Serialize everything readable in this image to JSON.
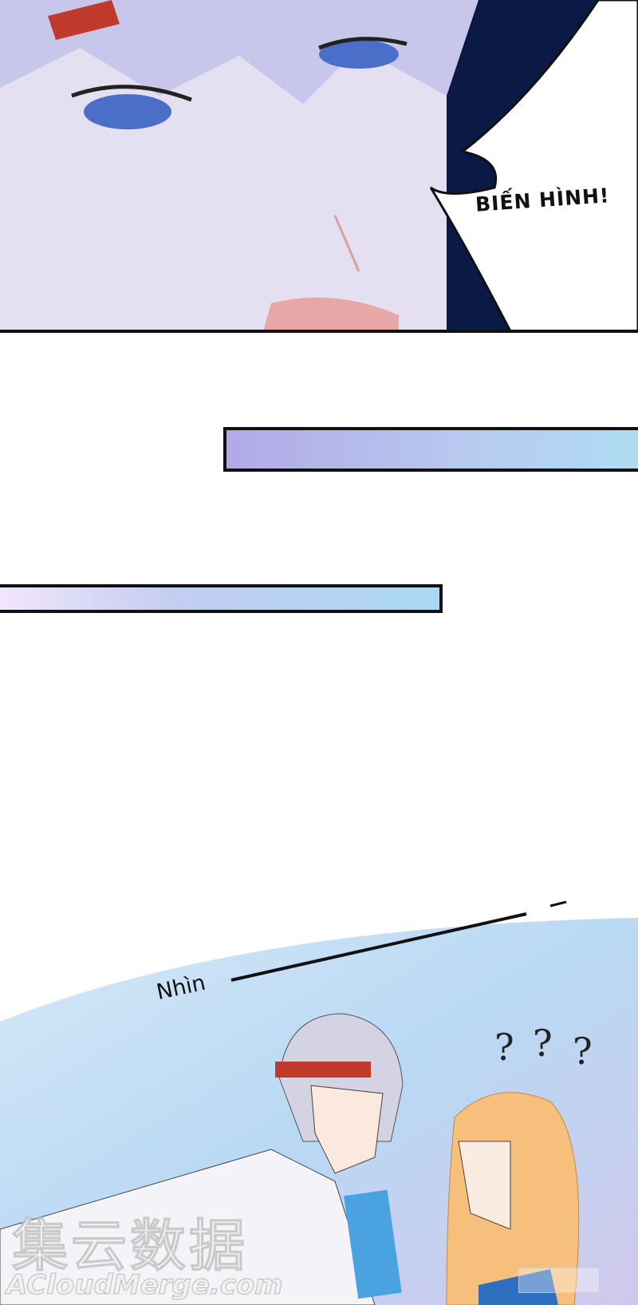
{
  "panel_top": {
    "speech": "BIẾN HÌNH!"
  },
  "panel_bottom": {
    "narration": "Nhìn",
    "question_marks": [
      "?",
      "?",
      "?"
    ]
  },
  "watermark": {
    "chinese": "集云数据",
    "site": "ACloudMerge.com"
  },
  "colors": {
    "bar1_start": "#b1a9e6",
    "bar1_end": "#aedcf3",
    "bar2_start": "#f3e6fa",
    "bar2_end": "#aad8f3",
    "sky": "#bcdcf5"
  }
}
